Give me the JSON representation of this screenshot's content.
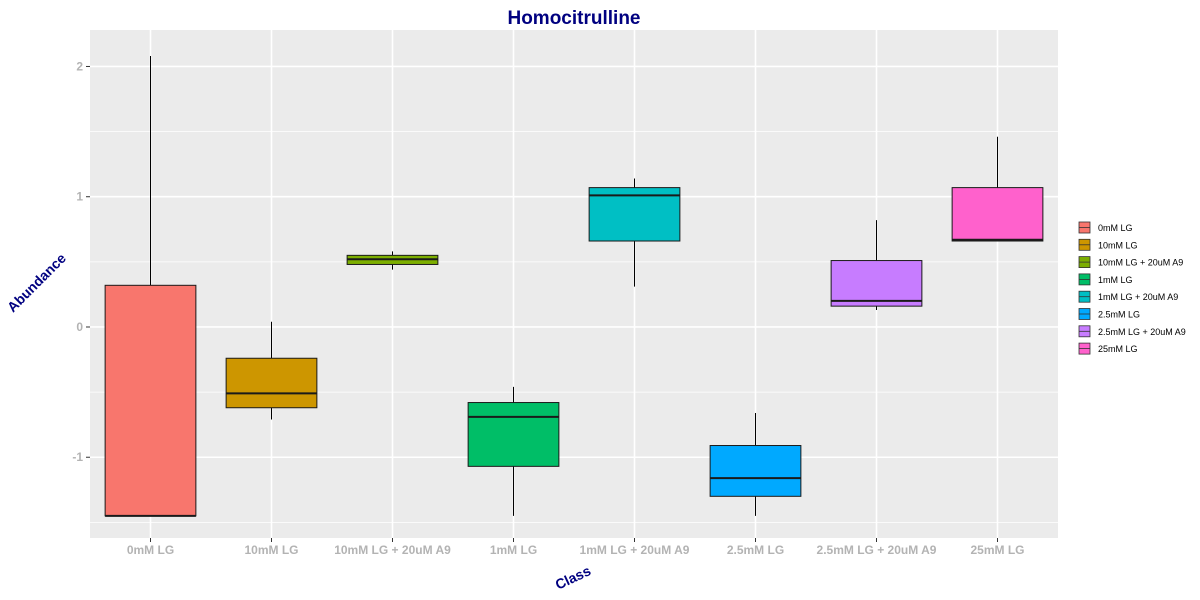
{
  "chart_data": {
    "type": "boxplot",
    "title": "Homocitrulline",
    "xlabel": "Class",
    "ylabel": "Abundance",
    "ylim": [
      -1.62,
      2.28
    ],
    "yticks": [
      -1,
      0,
      1,
      2
    ],
    "ytick_labels": [
      "-1",
      "0",
      "1",
      "2"
    ],
    "grid": true,
    "legend_position": "right",
    "categories": [
      "0mM LG",
      "10mM LG",
      "10mM LG + 20uM A9",
      "1mM LG",
      "1mM LG + 20uM A9",
      "2.5mM LG",
      "2.5mM LG + 20uM A9",
      "25mM LG"
    ],
    "series": [
      {
        "name": "0mM LG",
        "color": "#F8766D",
        "whisker_low": -1.45,
        "q1": -1.45,
        "median": -1.45,
        "q3": 0.32,
        "whisker_high": 2.08
      },
      {
        "name": "10mM LG",
        "color": "#CD9600",
        "whisker_low": -0.71,
        "q1": -0.62,
        "median": -0.51,
        "q3": -0.24,
        "whisker_high": 0.04
      },
      {
        "name": "10mM LG + 20uM A9",
        "color": "#7CAE00",
        "whisker_low": 0.44,
        "q1": 0.48,
        "median": 0.52,
        "q3": 0.55,
        "whisker_high": 0.58
      },
      {
        "name": "1mM LG",
        "color": "#00BE67",
        "whisker_low": -1.45,
        "q1": -1.07,
        "median": -0.69,
        "q3": -0.58,
        "whisker_high": -0.46
      },
      {
        "name": "1mM LG + 20uM A9",
        "color": "#00BFC4",
        "whisker_low": 0.31,
        "q1": 0.66,
        "median": 1.01,
        "q3": 1.07,
        "whisker_high": 1.14
      },
      {
        "name": "2.5mM LG",
        "color": "#00A9FF",
        "whisker_low": -1.45,
        "q1": -1.3,
        "median": -1.16,
        "q3": -0.91,
        "whisker_high": -0.66
      },
      {
        "name": "2.5mM LG + 20uM A9",
        "color": "#C77CFF",
        "whisker_low": 0.13,
        "q1": 0.16,
        "median": 0.2,
        "q3": 0.51,
        "whisker_high": 0.82
      },
      {
        "name": "25mM LG",
        "color": "#FF61CC",
        "whisker_low": 0.66,
        "q1": 0.66,
        "median": 0.67,
        "q3": 1.07,
        "whisker_high": 1.46
      }
    ]
  }
}
